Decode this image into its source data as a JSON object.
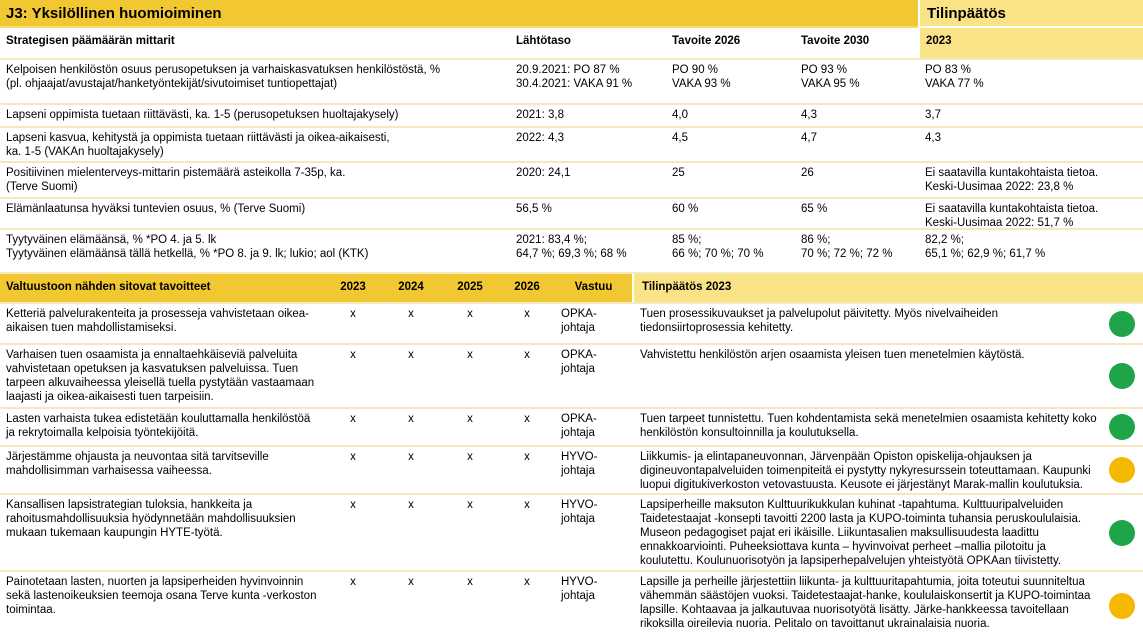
{
  "page": {
    "title": "J3: Yksilöllinen huomioiminen",
    "title_right": "Tilinpäätös"
  },
  "colors": {
    "gold_header": "#F2C832",
    "light_yellow_header": "#FAE287",
    "row_separator": "#F6E8BD",
    "status_green": "#1FA44A",
    "status_amber": "#F5B800"
  },
  "metrics_table": {
    "headers": {
      "mittarit": "Strategisen päämäärän mittarit",
      "lahtotaso": "Lähtötaso",
      "tavoite2026": "Tavoite 2026",
      "tavoite2030": "Tavoite 2030",
      "tilinpaatos2023": "2023"
    },
    "rows": [
      {
        "mittari": "Kelpoisen henkilöstön osuus perusopetuksen ja varhaiskasvatuksen henkilöstöstä, %\n(pl. ohjaajat/avustajat/hanketyöntekijät/sivutoimiset tuntiopettajat)",
        "lahtotaso": "20.9.2021: PO 87 %\n30.4.2021: VAKA 91 %",
        "tavoite2026": "PO 90 %\nVAKA 93 %",
        "tavoite2030": "PO 93 %\nVAKA 95 %",
        "tilinpaatos2023": "PO 83 %\nVAKA 77 %"
      },
      {
        "mittari": "Lapseni oppimista tuetaan riittävästi, ka. 1-5 (perusopetuksen huoltajakysely)",
        "lahtotaso": "2021: 3,8",
        "tavoite2026": "4,0",
        "tavoite2030": "4,3",
        "tilinpaatos2023": "3,7"
      },
      {
        "mittari": "Lapseni kasvua, kehitystä ja oppimista tuetaan riittävästi ja oikea-aikaisesti,\nka. 1-5 (VAKAn huoltajakysely)",
        "lahtotaso": "2022: 4,3",
        "tavoite2026": "4,5",
        "tavoite2030": "4,7",
        "tilinpaatos2023": "4,3"
      },
      {
        "mittari": "Positiivinen mielenterveys-mittarin pistemäärä asteikolla 7-35p, ka.\n(Terve Suomi)",
        "lahtotaso": "2020: 24,1",
        "tavoite2026": "25",
        "tavoite2030": "26",
        "tilinpaatos2023": "Ei saatavilla kuntakohtaista tietoa.\nKeski-Uusimaa 2022: 23,8 %"
      },
      {
        "mittari": "Elämänlaatunsa hyväksi tuntevien osuus, % (Terve Suomi)",
        "lahtotaso": "56,5 %",
        "tavoite2026": "60 %",
        "tavoite2030": "65 %",
        "tilinpaatos2023": "Ei saatavilla kuntakohtaista tietoa.\nKeski-Uusimaa 2022: 51,7 %"
      },
      {
        "mittari": "Tyytyväinen elämäänsä, % *PO 4. ja 5. lk\nTyytyväinen elämäänsä tällä hetkellä, % *PO 8. ja 9. lk; lukio; aol (KTK)",
        "lahtotaso": "2021: 83,4 %;\n64,7 %; 69,3 %; 68 %",
        "tavoite2026": "85 %;\n66 %; 70 %; 70 %",
        "tavoite2030": "86 %;\n70 %; 72 %; 72 %",
        "tilinpaatos2023": "82,2 %;\n65,1 %; 62,9 %; 61,7 %"
      }
    ]
  },
  "targets_table": {
    "headers": {
      "tavoitteet": "Valtuustoon nähden sitovat tavoitteet",
      "y2023": "2023",
      "y2024": "2024",
      "y2025": "2025",
      "y2026": "2026",
      "vastuu": "Vastuu",
      "tilinpaatos2023": "Tilinpäätös 2023"
    },
    "rows": [
      {
        "tavoite": "Ketteriä palvelurakenteita ja prosesseja vahvistetaan oikea-aikaisen tuen mahdollistamiseksi.",
        "y2023": "x",
        "y2024": "x",
        "y2025": "x",
        "y2026": "x",
        "vastuu": "OPKA-\njohtaja",
        "tilinpaatos": "Tuen prosessikuvaukset ja palvelupolut päivitetty. Myös nivelvaiheiden tiedonsiirtoprosessia kehitetty.",
        "status": "green"
      },
      {
        "tavoite": "Varhaisen tuen osaamista ja ennaltaehkäiseviä palveluita vahvistetaan opetuksen ja kasvatuksen palveluissa. Tuen tarpeen alkuvaiheessa yleisellä tuella pystytään vastaamaan laajasti ja oikea-aikaisesti tuen tarpeisiin.",
        "y2023": "x",
        "y2024": "x",
        "y2025": "x",
        "y2026": "x",
        "vastuu": "OPKA-\njohtaja",
        "tilinpaatos": "Vahvistettu henkilöstön arjen osaamista yleisen tuen menetelmien käytöstä.",
        "status": "green"
      },
      {
        "tavoite": "Lasten varhaista tukea edistetään kouluttamalla henkilöstöä ja rekrytoimalla kelpoisia työntekijöitä.",
        "y2023": "x",
        "y2024": "x",
        "y2025": "x",
        "y2026": "x",
        "vastuu": "OPKA-\njohtaja",
        "tilinpaatos": "Tuen tarpeet tunnistettu. Tuen kohdentamista sekä menetelmien osaamista kehitetty koko henkilöstön konsultoinnilla ja koulutuksella.",
        "status": "green"
      },
      {
        "tavoite": "Järjestämme ohjausta ja neuvontaa sitä tarvitseville mahdollisimman varhaisessa vaiheessa.",
        "y2023": "x",
        "y2024": "x",
        "y2025": "x",
        "y2026": "x",
        "vastuu": "HYVO-\njohtaja",
        "tilinpaatos": "Liikkumis- ja elintapaneuvonnan, Järvenpään Opiston opiskelija-ohjauksen ja digineuvontapalveluiden toimenpiteitä ei pystytty nykyresurssein toteuttamaan. Kaupunki luopui digitukiverkoston vetovastuusta. Keusote ei järjestänyt Marak-mallin koulutuksia.",
        "status": "amber"
      },
      {
        "tavoite": "Kansallisen lapsistrategian tuloksia, hankkeita ja rahoitusmahdollisuuksia hyödynnetään mahdollisuuksien mukaan tukemaan kaupungin HYTE-työtä.",
        "y2023": "x",
        "y2024": "x",
        "y2025": "x",
        "y2026": "x",
        "vastuu": "HYVO-\njohtaja",
        "tilinpaatos": "Lapsiperheille maksuton Kulttuurikukkulan kuhinat -tapahtuma. Kulttuuripalveluiden Taidetestaajat -konsepti tavoitti 2200 lasta ja KUPO-toiminta tuhansia peruskoululaisia. Museon pedagogiset pajat eri ikäisille. Liikuntasalien maksullisuudesta laadittu ennakkoarviointi. Puheeksiottava kunta – hyvinvoivat perheet –mallia pilotoitu ja koulutettu. Koulunuorisotyön ja lapsiperhepalvelujen yhteistyötä OPKAan tiivistetty.",
        "status": "green"
      },
      {
        "tavoite": "Painotetaan lasten, nuorten ja lapsiperheiden hyvinvoinnin sekä lastenoikeuksien teemoja osana Terve kunta -verkoston toimintaa.",
        "y2023": "x",
        "y2024": "x",
        "y2025": "x",
        "y2026": "x",
        "vastuu": "HYVO-\njohtaja",
        "tilinpaatos": "Lapsille ja perheille järjestettiin liikunta- ja kulttuuritapahtumia, joita toteutui suunniteltua vähemmän säästöjen vuoksi. Taidetestaajat-hanke, koululaiskonsertit ja KUPO-toimintaa lapsille. Kohtaavaa ja jalkautuvaa nuorisotyötä lisätty. Järke-hankkeessa tavoitellaan rikoksilla oireilevia nuoria. Pelitalo on tavoittanut ukrainalaisia nuoria.",
        "status": "amber"
      }
    ]
  }
}
